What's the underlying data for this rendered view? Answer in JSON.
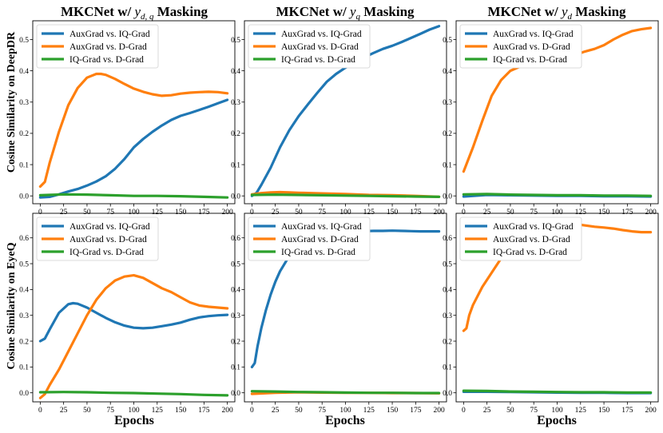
{
  "colors": {
    "auxgrad_vs_iqgrad": "#1f77b4",
    "auxgrad_vs_dgrad": "#ff7f0e",
    "iqgrad_vs_dgrad": "#2ca02c"
  },
  "column_titles": [
    {
      "prefix": "MKCNet w/ ",
      "symbol": "y",
      "subscript": "d, q",
      "suffix": " Masking"
    },
    {
      "prefix": "MKCNet w/ ",
      "symbol": "y",
      "subscript": "q",
      "suffix": " Masking"
    },
    {
      "prefix": "MKCNet w/ ",
      "symbol": "y",
      "subscript": "d",
      "suffix": " Masking"
    }
  ],
  "row_labels": [
    "Cosine Similarity on DeepDR",
    "Cosine Similarity on EyeQ"
  ],
  "xlabel": "Epochs",
  "chart_data": [
    {
      "type": "line",
      "panel": "DeepDR y_dq",
      "xlim": [
        -8,
        208
      ],
      "ylim": [
        -0.025,
        0.56
      ],
      "xticks": [
        0,
        25,
        50,
        75,
        100,
        125,
        150,
        175,
        200
      ],
      "yticks": [
        0.0,
        0.1,
        0.2,
        0.3,
        0.4,
        0.5
      ],
      "series": [
        {
          "name": "AuxGrad vs. IQ-Grad",
          "x": [
            0,
            10,
            20,
            30,
            40,
            50,
            60,
            70,
            80,
            90,
            100,
            110,
            120,
            130,
            140,
            150,
            160,
            170,
            180,
            190,
            200
          ],
          "y": [
            -0.005,
            -0.003,
            0.005,
            0.014,
            0.022,
            0.033,
            0.046,
            0.063,
            0.087,
            0.118,
            0.155,
            0.182,
            0.205,
            0.225,
            0.243,
            0.256,
            0.265,
            0.275,
            0.285,
            0.296,
            0.307
          ]
        },
        {
          "name": "AuxGrad vs. D-Grad",
          "x": [
            0,
            5,
            10,
            20,
            30,
            40,
            50,
            60,
            65,
            70,
            80,
            90,
            100,
            110,
            120,
            130,
            140,
            150,
            160,
            170,
            180,
            190,
            200
          ],
          "y": [
            0.03,
            0.045,
            0.105,
            0.205,
            0.29,
            0.345,
            0.378,
            0.39,
            0.39,
            0.387,
            0.374,
            0.358,
            0.343,
            0.333,
            0.325,
            0.32,
            0.322,
            0.327,
            0.33,
            0.332,
            0.333,
            0.332,
            0.328
          ]
        },
        {
          "name": "IQ-Grad vs. D-Grad",
          "x": [
            0,
            25,
            50,
            75,
            100,
            125,
            150,
            175,
            200
          ],
          "y": [
            0.002,
            0.005,
            0.004,
            0.002,
            0.0,
            0.0,
            -0.001,
            -0.003,
            -0.005
          ]
        }
      ],
      "legend": [
        "AuxGrad vs. IQ-Grad",
        "AuxGrad vs. D-Grad",
        "IQ-Grad vs. D-Grad"
      ]
    },
    {
      "type": "line",
      "panel": "DeepDR y_q",
      "xlim": [
        -8,
        208
      ],
      "ylim": [
        -0.025,
        0.56
      ],
      "xticks": [
        0,
        25,
        50,
        75,
        100,
        125,
        150,
        175,
        200
      ],
      "yticks": [
        0.0,
        0.1,
        0.2,
        0.3,
        0.4,
        0.5
      ],
      "series": [
        {
          "name": "AuxGrad vs. IQ-Grad",
          "x": [
            0,
            5,
            10,
            20,
            30,
            40,
            50,
            60,
            70,
            80,
            90,
            100,
            110,
            120,
            130,
            140,
            150,
            160,
            170,
            180,
            190,
            200
          ],
          "y": [
            0.0,
            0.01,
            0.035,
            0.09,
            0.155,
            0.21,
            0.255,
            0.293,
            0.33,
            0.365,
            0.39,
            0.41,
            0.428,
            0.443,
            0.457,
            0.47,
            0.48,
            0.492,
            0.505,
            0.518,
            0.532,
            0.543
          ]
        },
        {
          "name": "AuxGrad vs. D-Grad",
          "x": [
            0,
            10,
            20,
            30,
            40,
            50,
            75,
            100,
            125,
            150,
            175,
            200
          ],
          "y": [
            0.005,
            0.009,
            0.011,
            0.012,
            0.011,
            0.01,
            0.008,
            0.006,
            0.003,
            0.002,
            0.0,
            -0.003
          ]
        },
        {
          "name": "IQ-Grad vs. D-Grad",
          "x": [
            0,
            25,
            50,
            75,
            100,
            125,
            150,
            175,
            200
          ],
          "y": [
            0.003,
            0.004,
            0.003,
            0.002,
            0.001,
            0.0,
            -0.001,
            -0.002,
            -0.003
          ]
        }
      ],
      "legend": [
        "AuxGrad vs. IQ-Grad",
        "AuxGrad vs. D-Grad",
        "IQ-Grad vs. D-Grad"
      ]
    },
    {
      "type": "line",
      "panel": "DeepDR y_d",
      "xlim": [
        -8,
        208
      ],
      "ylim": [
        -0.025,
        0.56
      ],
      "xticks": [
        0,
        25,
        50,
        75,
        100,
        125,
        150,
        175,
        200
      ],
      "yticks": [
        0.0,
        0.1,
        0.2,
        0.3,
        0.4,
        0.5
      ],
      "series": [
        {
          "name": "AuxGrad vs. IQ-Grad",
          "x": [
            0,
            25,
            50,
            75,
            100,
            125,
            150,
            175,
            200
          ],
          "y": [
            -0.002,
            0.003,
            0.002,
            0.001,
            0.0,
            0.0,
            -0.001,
            -0.001,
            -0.002
          ]
        },
        {
          "name": "AuxGrad vs. D-Grad",
          "x": [
            0,
            10,
            20,
            30,
            40,
            50,
            60,
            70,
            80,
            90,
            100,
            110,
            120,
            130,
            140,
            150,
            160,
            170,
            180,
            190,
            200
          ],
          "y": [
            0.078,
            0.155,
            0.24,
            0.32,
            0.37,
            0.4,
            0.413,
            0.418,
            0.42,
            0.425,
            0.43,
            0.44,
            0.452,
            0.462,
            0.47,
            0.482,
            0.5,
            0.515,
            0.527,
            0.533,
            0.537
          ]
        },
        {
          "name": "IQ-Grad vs. D-Grad",
          "x": [
            0,
            25,
            50,
            75,
            100,
            125,
            150,
            175,
            200
          ],
          "y": [
            0.005,
            0.006,
            0.004,
            0.003,
            0.002,
            0.002,
            0.001,
            0.001,
            0.0
          ]
        }
      ],
      "legend": [
        "AuxGrad vs. IQ-Grad",
        "AuxGrad vs. D-Grad",
        "IQ-Grad vs. D-Grad"
      ]
    },
    {
      "type": "line",
      "panel": "EyeQ y_dq",
      "xlim": [
        -8,
        208
      ],
      "ylim": [
        -0.035,
        0.695
      ],
      "xticks": [
        0,
        25,
        50,
        75,
        100,
        125,
        150,
        175,
        200
      ],
      "yticks": [
        0.0,
        0.1,
        0.2,
        0.3,
        0.4,
        0.5,
        0.6
      ],
      "series": [
        {
          "name": "AuxGrad vs. IQ-Grad",
          "x": [
            0,
            5,
            10,
            20,
            30,
            35,
            40,
            50,
            60,
            70,
            80,
            90,
            100,
            110,
            120,
            130,
            140,
            150,
            160,
            170,
            180,
            190,
            200
          ],
          "y": [
            0.2,
            0.21,
            0.245,
            0.31,
            0.343,
            0.347,
            0.345,
            0.33,
            0.31,
            0.29,
            0.273,
            0.26,
            0.252,
            0.25,
            0.252,
            0.258,
            0.264,
            0.272,
            0.283,
            0.292,
            0.297,
            0.3,
            0.302
          ]
        },
        {
          "name": "AuxGrad vs. D-Grad",
          "x": [
            0,
            5,
            10,
            20,
            30,
            40,
            50,
            60,
            70,
            80,
            90,
            100,
            110,
            120,
            130,
            140,
            150,
            160,
            170,
            180,
            190,
            200
          ],
          "y": [
            -0.02,
            -0.005,
            0.03,
            0.09,
            0.16,
            0.23,
            0.3,
            0.36,
            0.405,
            0.435,
            0.45,
            0.455,
            0.445,
            0.425,
            0.405,
            0.39,
            0.37,
            0.35,
            0.338,
            0.333,
            0.33,
            0.327
          ]
        },
        {
          "name": "IQ-Grad vs. D-Grad",
          "x": [
            0,
            25,
            50,
            75,
            100,
            125,
            150,
            175,
            200
          ],
          "y": [
            0.002,
            0.003,
            0.002,
            0.0,
            -0.001,
            -0.003,
            -0.005,
            -0.008,
            -0.01
          ]
        }
      ],
      "legend": [
        "AuxGrad vs. IQ-Grad",
        "AuxGrad vs. D-Grad",
        "IQ-Grad vs. D-Grad"
      ]
    },
    {
      "type": "line",
      "panel": "EyeQ y_q",
      "xlim": [
        -8,
        208
      ],
      "ylim": [
        -0.035,
        0.695
      ],
      "xticks": [
        0,
        25,
        50,
        75,
        100,
        125,
        150,
        175,
        200
      ],
      "yticks": [
        0.0,
        0.1,
        0.2,
        0.3,
        0.4,
        0.5,
        0.6
      ],
      "series": [
        {
          "name": "AuxGrad vs. IQ-Grad",
          "x": [
            0,
            3,
            6,
            10,
            15,
            20,
            25,
            30,
            40,
            50,
            60,
            70,
            80,
            90,
            100,
            110,
            120,
            130,
            140,
            150,
            160,
            170,
            180,
            190,
            200
          ],
          "y": [
            0.1,
            0.115,
            0.18,
            0.25,
            0.32,
            0.38,
            0.43,
            0.47,
            0.53,
            0.57,
            0.6,
            0.615,
            0.622,
            0.625,
            0.626,
            0.627,
            0.626,
            0.627,
            0.627,
            0.628,
            0.627,
            0.626,
            0.625,
            0.625,
            0.625
          ]
        },
        {
          "name": "AuxGrad vs. D-Grad",
          "x": [
            0,
            25,
            50,
            75,
            100,
            125,
            150,
            175,
            200
          ],
          "y": [
            -0.004,
            0.0,
            0.002,
            0.001,
            0.0,
            0.0,
            -0.001,
            -0.001,
            -0.002
          ]
        },
        {
          "name": "IQ-Grad vs. D-Grad",
          "x": [
            0,
            25,
            50,
            75,
            100,
            125,
            150,
            175,
            200
          ],
          "y": [
            0.006,
            0.005,
            0.003,
            0.002,
            0.001,
            0.0,
            0.0,
            -0.001,
            -0.001
          ]
        }
      ],
      "legend": [
        "AuxGrad vs. IQ-Grad",
        "AuxGrad vs. D-Grad",
        "IQ-Grad vs. D-Grad"
      ]
    },
    {
      "type": "line",
      "panel": "EyeQ y_d",
      "xlim": [
        -8,
        208
      ],
      "ylim": [
        -0.035,
        0.695
      ],
      "xticks": [
        0,
        25,
        50,
        75,
        100,
        125,
        150,
        175,
        200
      ],
      "yticks": [
        0.0,
        0.1,
        0.2,
        0.3,
        0.4,
        0.5,
        0.6
      ],
      "series": [
        {
          "name": "AuxGrad vs. IQ-Grad",
          "x": [
            0,
            25,
            50,
            75,
            100,
            125,
            150,
            175,
            200
          ],
          "y": [
            0.004,
            0.004,
            0.003,
            0.002,
            0.001,
            0.0,
            0.0,
            -0.001,
            -0.001
          ]
        },
        {
          "name": "AuxGrad vs. D-Grad",
          "x": [
            0,
            3,
            6,
            10,
            20,
            30,
            40,
            50,
            60,
            70,
            80,
            90,
            100,
            110,
            120,
            130,
            140,
            150,
            160,
            170,
            180,
            190,
            200
          ],
          "y": [
            0.24,
            0.25,
            0.3,
            0.34,
            0.41,
            0.465,
            0.52,
            0.565,
            0.6,
            0.625,
            0.64,
            0.648,
            0.652,
            0.655,
            0.653,
            0.648,
            0.643,
            0.64,
            0.636,
            0.63,
            0.625,
            0.622,
            0.622
          ]
        },
        {
          "name": "IQ-Grad vs. D-Grad",
          "x": [
            0,
            25,
            50,
            75,
            100,
            125,
            150,
            175,
            200
          ],
          "y": [
            0.008,
            0.007,
            0.005,
            0.004,
            0.003,
            0.002,
            0.002,
            0.001,
            0.001
          ]
        }
      ],
      "legend": [
        "AuxGrad vs. IQ-Grad",
        "AuxGrad vs. D-Grad",
        "IQ-Grad vs. D-Grad"
      ]
    }
  ]
}
